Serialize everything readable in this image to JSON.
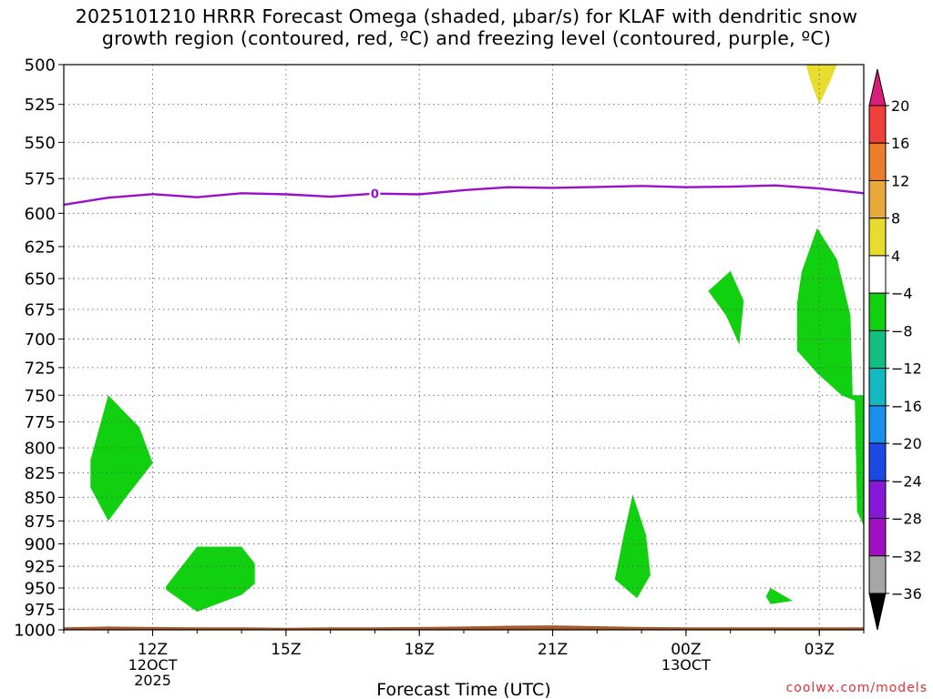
{
  "chart_data": {
    "type": "heatmap",
    "title_line1": "2025101210 HRRR Forecast Omega (shaded, μbar/s) for KLAF with dendritic snow",
    "title_line2": "growth region (contoured, red, ºC) and freezing level (contoured, purple, ºC)",
    "xlabel": "Forecast Time (UTC)",
    "x_range_hours": [
      10,
      28
    ],
    "x_ticks": [
      {
        "hour": 12,
        "label": "12Z",
        "sub": [
          "12OCT",
          "2025"
        ]
      },
      {
        "hour": 15,
        "label": "15Z",
        "sub": []
      },
      {
        "hour": 18,
        "label": "18Z",
        "sub": []
      },
      {
        "hour": 21,
        "label": "21Z",
        "sub": []
      },
      {
        "hour": 24,
        "label": "00Z",
        "sub": [
          "13OCT"
        ]
      },
      {
        "hour": 27,
        "label": "03Z",
        "sub": []
      }
    ],
    "y_axis": "pressure (mb), log scale",
    "y_range_mb": [
      500,
      1000
    ],
    "y_ticks": [
      500,
      525,
      550,
      575,
      600,
      625,
      650,
      675,
      700,
      725,
      750,
      775,
      800,
      825,
      850,
      875,
      900,
      925,
      950,
      975,
      1000
    ],
    "colorbar": {
      "labels": [
        "20",
        "16",
        "12",
        "8",
        "4",
        "−4",
        "−8",
        "−12",
        "−16",
        "−20",
        "−24",
        "−28",
        "−32",
        "−36"
      ],
      "colors": [
        "#d81d7a",
        "#ef3f3a",
        "#ec7d2a",
        "#e8a83a",
        "#e8dc2e",
        "#ffffff",
        "#10d010",
        "#12bd80",
        "#14b8c0",
        "#1a90ec",
        "#1c48e4",
        "#8818d8",
        "#a010c0",
        "#a6a6a6",
        "#000000"
      ]
    },
    "freezing_level": {
      "label": "0",
      "label_hour": 17,
      "points": [
        [
          10,
          593.7
        ],
        [
          11,
          588.6
        ],
        [
          12,
          586.1
        ],
        [
          13,
          588.3
        ],
        [
          14,
          585.4
        ],
        [
          15,
          586.2
        ],
        [
          16,
          587.9
        ],
        [
          17,
          585.7
        ],
        [
          18,
          586.2
        ],
        [
          19,
          583.2
        ],
        [
          20,
          581.1
        ],
        [
          21,
          581.6
        ],
        [
          22,
          580.9
        ],
        [
          23,
          580.2
        ],
        [
          24,
          581.1
        ],
        [
          25,
          580.7
        ],
        [
          26,
          579.8
        ],
        [
          27,
          582.0
        ],
        [
          28,
          585.4
        ]
      ]
    },
    "omega_regions": [
      {
        "name": "updraft-812mb-11z",
        "value_range": [
          -8,
          -4
        ],
        "color": "#10d010",
        "points": [
          [
            11.0,
            750
          ],
          [
            11.7,
            780
          ],
          [
            12.0,
            815
          ],
          [
            11.4,
            850
          ],
          [
            11.0,
            875
          ],
          [
            10.6,
            840
          ],
          [
            10.6,
            812
          ]
        ]
      },
      {
        "name": "updraft-935mb-13z",
        "value_range": [
          -8,
          -4
        ],
        "color": "#10d010",
        "points": [
          [
            12.3,
            948
          ],
          [
            13.0,
            903
          ],
          [
            14.0,
            903
          ],
          [
            14.3,
            922
          ],
          [
            14.3,
            945
          ],
          [
            14.0,
            958
          ],
          [
            13.0,
            978
          ],
          [
            12.3,
            952
          ]
        ]
      },
      {
        "name": "updraft-660mb-01z",
        "value_range": [
          -8,
          -4
        ],
        "color": "#10d010",
        "points": [
          [
            25.0,
            644
          ],
          [
            25.3,
            668
          ],
          [
            25.2,
            705
          ],
          [
            24.9,
            680
          ],
          [
            24.5,
            660
          ]
        ]
      },
      {
        "name": "updraft-900mb-22z",
        "value_range": [
          -8,
          -4
        ],
        "color": "#10d010",
        "points": [
          [
            22.8,
            847
          ],
          [
            23.1,
            890
          ],
          [
            23.2,
            935
          ],
          [
            22.9,
            962
          ],
          [
            22.4,
            940
          ],
          [
            22.6,
            890
          ]
        ]
      },
      {
        "name": "updraft-960mb-02z",
        "value_range": [
          -8,
          -4
        ],
        "color": "#10d010",
        "points": [
          [
            25.9,
            950
          ],
          [
            26.4,
            965
          ],
          [
            25.9,
            969
          ],
          [
            25.8,
            960
          ]
        ]
      },
      {
        "name": "updraft-680mb-03z",
        "value_range": [
          -8,
          -4
        ],
        "color": "#10d010",
        "points": [
          [
            26.95,
            611
          ],
          [
            27.4,
            635
          ],
          [
            27.7,
            680
          ],
          [
            27.75,
            750
          ],
          [
            28.0,
            750
          ],
          [
            28.0,
            880
          ],
          [
            27.85,
            865
          ],
          [
            27.8,
            755
          ],
          [
            27.5,
            750
          ],
          [
            26.95,
            730
          ],
          [
            26.5,
            710
          ],
          [
            26.5,
            670
          ],
          [
            26.6,
            645
          ]
        ]
      },
      {
        "name": "subsidence-505mb-03z",
        "value_range": [
          4,
          8
        ],
        "color": "#e8dc2e",
        "points": [
          [
            26.7,
            500
          ],
          [
            27.4,
            500
          ],
          [
            27.25,
            510
          ],
          [
            27.0,
            525
          ],
          [
            26.8,
            510
          ]
        ]
      }
    ],
    "surface_terrain": {
      "color": "#a85a2a",
      "points": [
        [
          10,
          997
        ],
        [
          11,
          996
        ],
        [
          12,
          996.5
        ],
        [
          13,
          997
        ],
        [
          14,
          997
        ],
        [
          15,
          997.5
        ],
        [
          16,
          997
        ],
        [
          17,
          997
        ],
        [
          18,
          996.5
        ],
        [
          19,
          996
        ],
        [
          20,
          995
        ],
        [
          21,
          994.5
        ],
        [
          22,
          995.5
        ],
        [
          23,
          996.5
        ],
        [
          24,
          997
        ],
        [
          25,
          997
        ],
        [
          26,
          997
        ],
        [
          27,
          997
        ],
        [
          28,
          997
        ]
      ]
    },
    "credit": "coolwx.com/models"
  }
}
